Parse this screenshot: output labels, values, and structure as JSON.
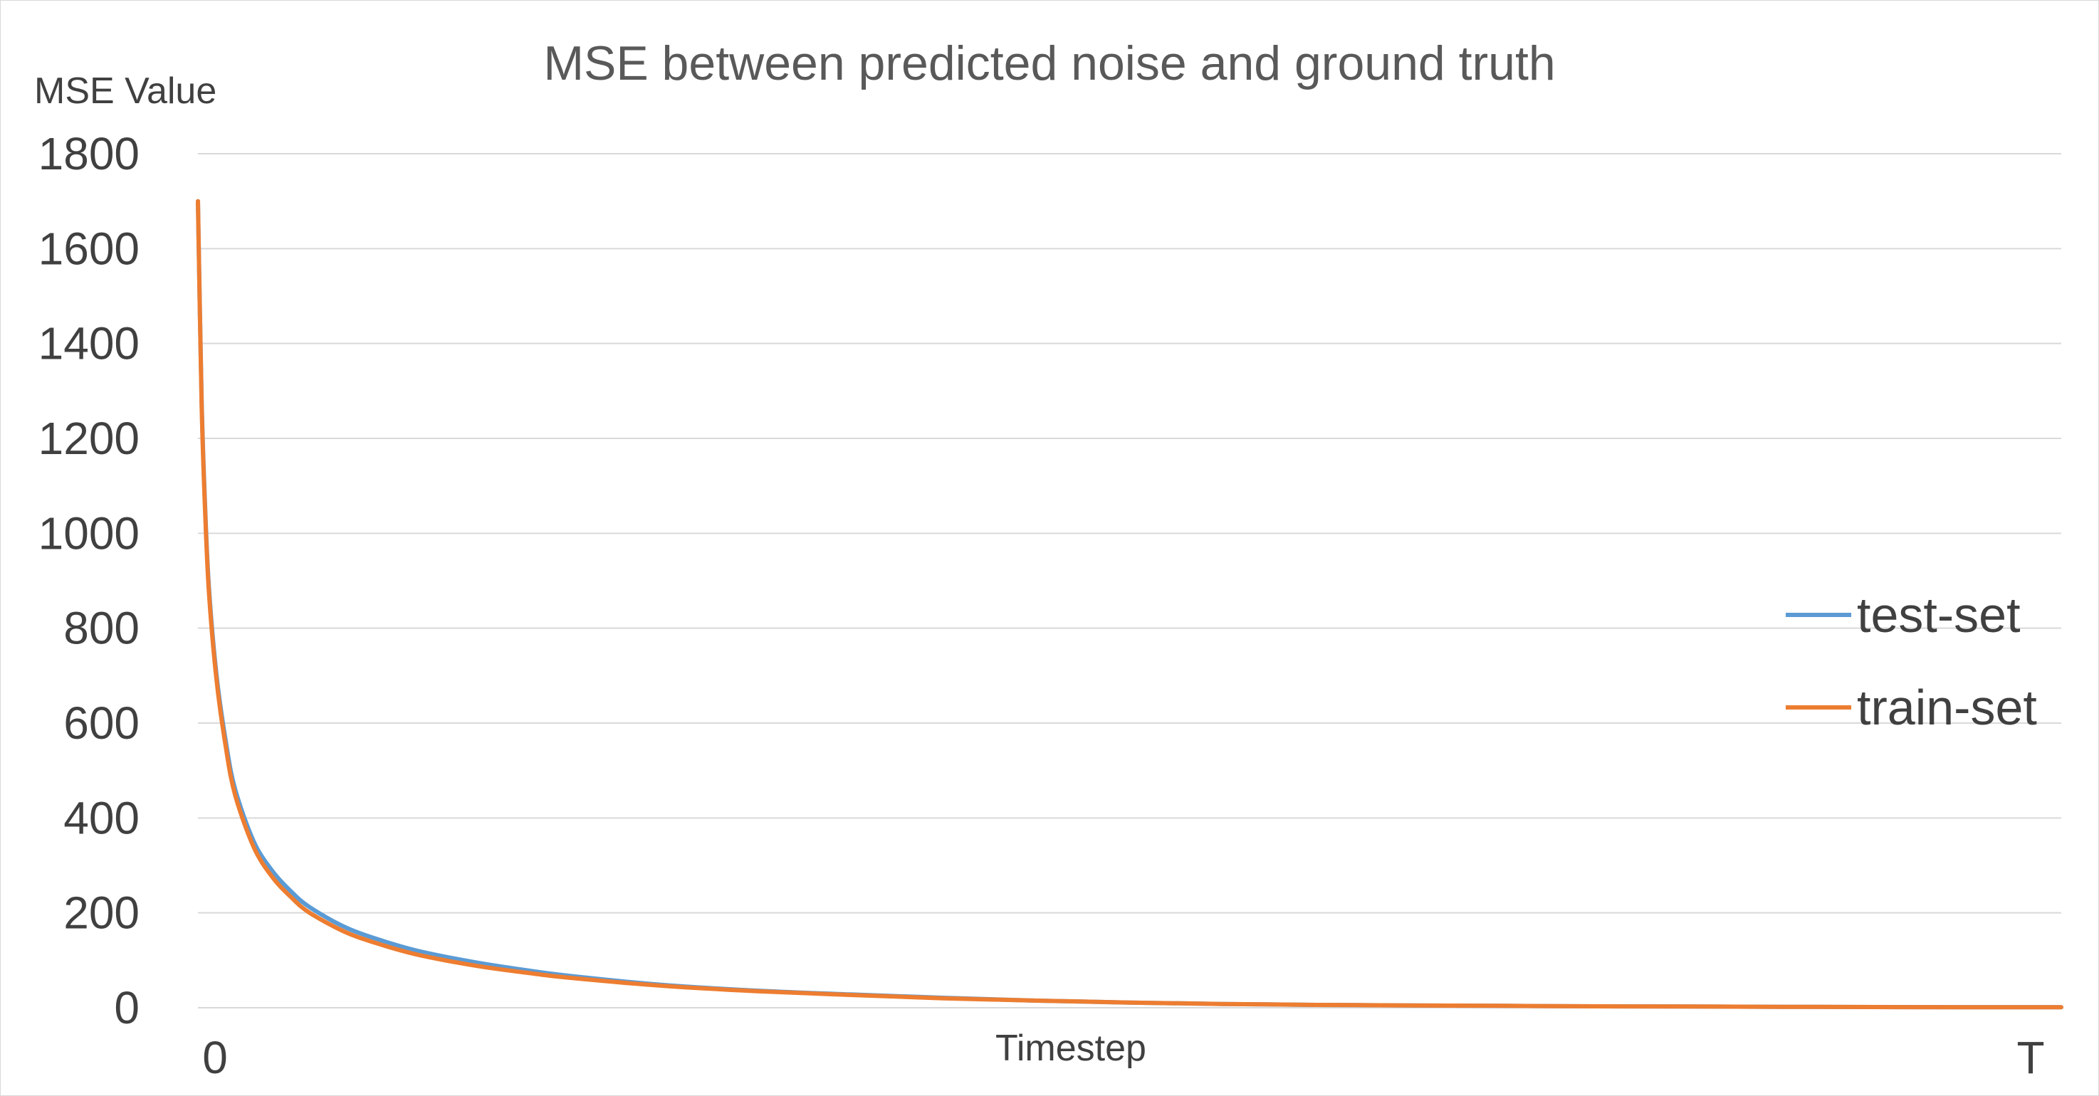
{
  "chart_data": {
    "type": "line",
    "title": "MSE between predicted noise and ground truth",
    "ylabel": "MSE Value",
    "xlabel": "Timestep",
    "x_tick_labels": [
      "0",
      "T"
    ],
    "x": [
      0,
      0.002,
      0.004,
      0.006,
      0.01,
      0.015,
      0.02,
      0.03,
      0.04,
      0.05,
      0.06,
      0.08,
      0.1,
      0.12,
      0.15,
      0.18,
      0.2,
      0.25,
      0.3,
      0.35,
      0.4,
      0.45,
      0.5,
      0.55,
      0.6,
      0.65,
      0.7,
      0.75,
      0.8,
      0.85,
      0.9,
      0.95,
      1.0
    ],
    "ylim": [
      0,
      1800
    ],
    "yticks": [
      0,
      200,
      400,
      600,
      800,
      1000,
      1200,
      1400,
      1600,
      1800
    ],
    "grid": true,
    "legend": "right",
    "series": [
      {
        "name": "test-set",
        "color": "#5b9bd5",
        "values": [
          1700,
          1280,
          1040,
          880,
          700,
          560,
          460,
          350,
          288,
          245,
          212,
          168,
          140,
          118,
          95,
          77,
          67,
          48,
          36,
          28,
          21,
          15,
          11,
          8,
          6,
          5,
          4,
          3,
          2.5,
          2,
          1.5,
          1,
          1
        ]
      },
      {
        "name": "train-set",
        "color": "#ed7d31",
        "values": [
          1700,
          1270,
          1030,
          870,
          690,
          548,
          448,
          338,
          275,
          233,
          200,
          158,
          131,
          110,
          88,
          72,
          63,
          46,
          35,
          27,
          20,
          15,
          11,
          8,
          6,
          5,
          4,
          3,
          2.5,
          2,
          1.5,
          1,
          1
        ]
      }
    ]
  }
}
